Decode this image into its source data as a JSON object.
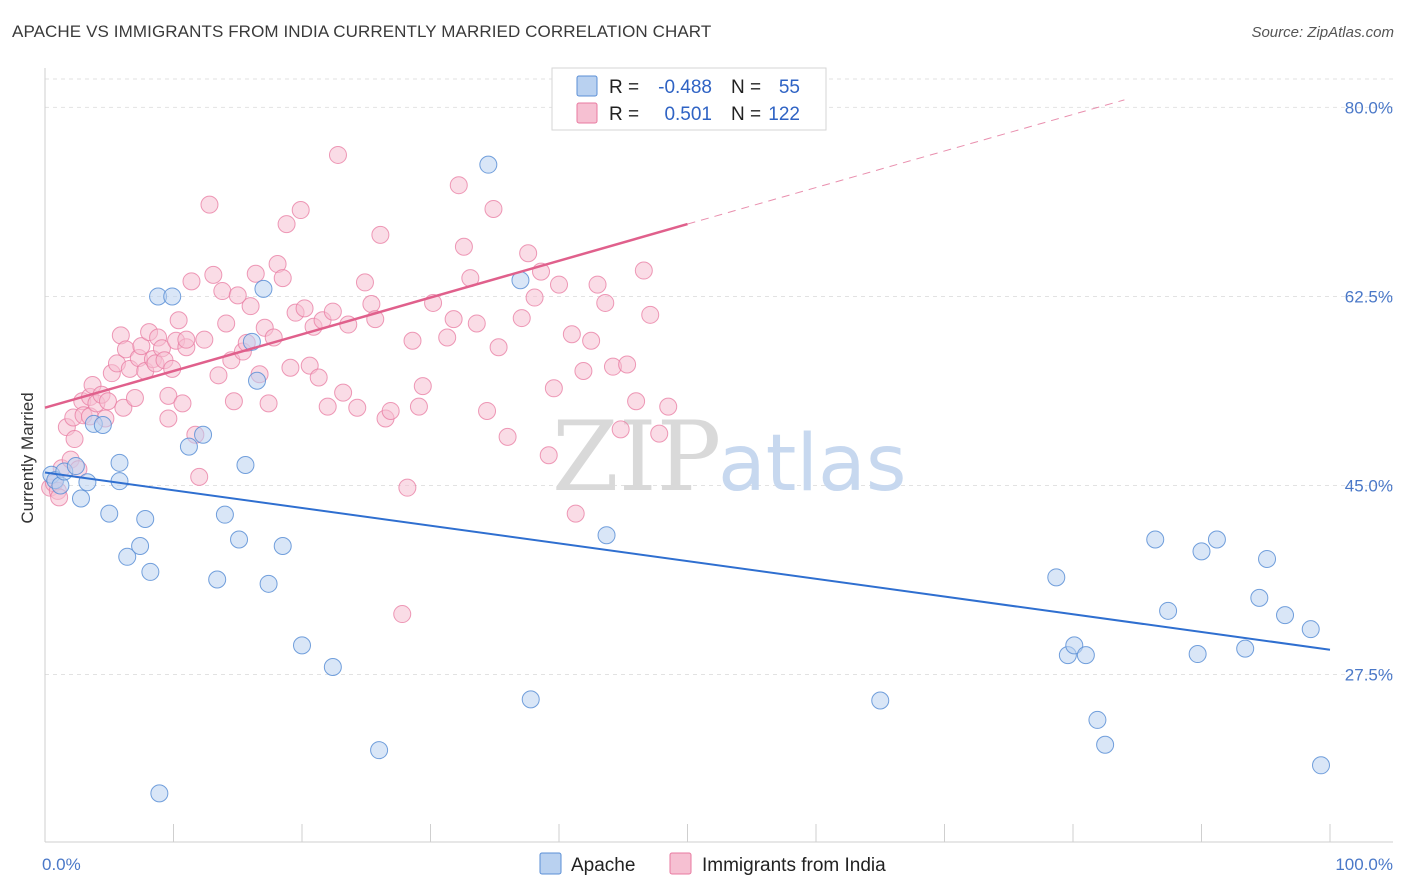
{
  "title": "APACHE VS IMMIGRANTS FROM INDIA CURRENTLY MARRIED CORRELATION CHART",
  "source": "Source: ZipAtlas.com",
  "watermark": {
    "zip": "ZIP",
    "atlas": "atlas"
  },
  "colors": {
    "apache": "#5b8fd6",
    "apache_fill": "#b9d1f0",
    "apache_line": "#2f6fd0",
    "india": "#e87aa0",
    "india_fill": "#f6c0d2",
    "india_line": "#e0608c",
    "grid": "#e2e2e2",
    "tick_label": "#4a78c8"
  },
  "legend": {
    "rows": [
      {
        "r_label": "R =",
        "r_value": "-0.488",
        "n_label": "N =",
        "n_value": "55"
      },
      {
        "r_label": "R =",
        "r_value": "0.501",
        "n_label": "N =",
        "n_value": "122"
      }
    ]
  },
  "chart_data": {
    "type": "scatter",
    "title": "APACHE VS IMMIGRANTS FROM INDIA CURRENTLY MARRIED CORRELATION CHART",
    "xlabel": "",
    "ylabel": "Currently Married",
    "xlim": [
      0,
      100
    ],
    "ylim": [
      12,
      83
    ],
    "x_tick_labels": [
      "0.0%",
      "100.0%"
    ],
    "y_ticks": [
      27.5,
      45.0,
      62.5,
      80.0
    ],
    "y_tick_labels": [
      "27.5%",
      "45.0%",
      "62.5%",
      "80.0%"
    ],
    "grid": true,
    "legend_position": "top-center",
    "series": [
      {
        "name": "Apache",
        "trend": {
          "x0": 0,
          "y0": 46.2,
          "x1": 100,
          "y1": 29.8
        },
        "points": [
          [
            0.5,
            46
          ],
          [
            0.8,
            45.5
          ],
          [
            1.2,
            45
          ],
          [
            1.5,
            46.3
          ],
          [
            2.4,
            46.8
          ],
          [
            2.8,
            43.8
          ],
          [
            3.3,
            45.3
          ],
          [
            3.8,
            50.7
          ],
          [
            4.5,
            50.6
          ],
          [
            5,
            42.4
          ],
          [
            5.8,
            45.4
          ],
          [
            5.8,
            47.1
          ],
          [
            6.4,
            38.4
          ],
          [
            7.4,
            39.4
          ],
          [
            7.8,
            41.9
          ],
          [
            8.2,
            37
          ],
          [
            8.9,
            16.5
          ],
          [
            8.8,
            62.5
          ],
          [
            9.9,
            62.5
          ],
          [
            11.2,
            48.6
          ],
          [
            12.3,
            49.7
          ],
          [
            13.4,
            36.3
          ],
          [
            14,
            42.3
          ],
          [
            15.1,
            40
          ],
          [
            15.6,
            46.9
          ],
          [
            16.1,
            58.3
          ],
          [
            16.5,
            54.7
          ],
          [
            17,
            63.2
          ],
          [
            17.4,
            35.9
          ],
          [
            18.5,
            39.4
          ],
          [
            20,
            30.2
          ],
          [
            22.4,
            28.2
          ],
          [
            26,
            20.5
          ],
          [
            34.5,
            74.7
          ],
          [
            37,
            64
          ],
          [
            37.8,
            25.2
          ],
          [
            43.7,
            40.4
          ],
          [
            65,
            25.1
          ],
          [
            78.7,
            36.5
          ],
          [
            79.6,
            29.3
          ],
          [
            80.1,
            30.2
          ],
          [
            81,
            29.3
          ],
          [
            81.9,
            23.3
          ],
          [
            82.5,
            21
          ],
          [
            86.4,
            40
          ],
          [
            87.4,
            33.4
          ],
          [
            89.7,
            29.4
          ],
          [
            90,
            38.9
          ],
          [
            91.2,
            40
          ],
          [
            93.4,
            29.9
          ],
          [
            94.5,
            34.6
          ],
          [
            95.1,
            38.2
          ],
          [
            96.5,
            33
          ],
          [
            98.5,
            31.7
          ],
          [
            99.3,
            19.1
          ]
        ]
      },
      {
        "name": "Immigrants from India",
        "trend": {
          "x0": 0,
          "y0": 52.2,
          "x1": 50,
          "y1": 69.2,
          "dash_x1": 84,
          "dash_y1": 80.7
        },
        "points": [
          [
            0.4,
            44.8
          ],
          [
            0.7,
            45.2
          ],
          [
            1,
            44.5
          ],
          [
            1.1,
            43.9
          ],
          [
            1.3,
            46.6
          ],
          [
            1.7,
            50.4
          ],
          [
            2,
            47.4
          ],
          [
            2.2,
            51.3
          ],
          [
            2.3,
            49.3
          ],
          [
            2.6,
            46.5
          ],
          [
            2.9,
            52.8
          ],
          [
            3,
            51.5
          ],
          [
            3.5,
            51.4
          ],
          [
            3.5,
            53.2
          ],
          [
            3.7,
            54.3
          ],
          [
            4,
            52.6
          ],
          [
            4.4,
            53.4
          ],
          [
            4.7,
            51.2
          ],
          [
            4.9,
            52.8
          ],
          [
            5.2,
            55.4
          ],
          [
            5.6,
            56.3
          ],
          [
            5.9,
            58.9
          ],
          [
            6.1,
            52.2
          ],
          [
            6.3,
            57.6
          ],
          [
            6.6,
            55.8
          ],
          [
            7,
            53.1
          ],
          [
            7.3,
            56.8
          ],
          [
            7.5,
            57.9
          ],
          [
            7.8,
            55.6
          ],
          [
            8.1,
            59.2
          ],
          [
            8.4,
            56.7
          ],
          [
            8.6,
            56.3
          ],
          [
            8.8,
            58.7
          ],
          [
            9.1,
            57.7
          ],
          [
            9.3,
            56.6
          ],
          [
            9.6,
            53.3
          ],
          [
            9.6,
            51.2
          ],
          [
            9.9,
            55.8
          ],
          [
            10.2,
            58.4
          ],
          [
            10.4,
            60.3
          ],
          [
            10.7,
            52.6
          ],
          [
            11,
            57.8
          ],
          [
            11,
            58.5
          ],
          [
            11.4,
            63.9
          ],
          [
            11.7,
            49.7
          ],
          [
            12,
            45.8
          ],
          [
            12.4,
            58.5
          ],
          [
            12.8,
            71
          ],
          [
            13.1,
            64.5
          ],
          [
            13.5,
            55.2
          ],
          [
            13.8,
            63
          ],
          [
            14.1,
            60
          ],
          [
            14.5,
            56.6
          ],
          [
            14.7,
            52.8
          ],
          [
            15,
            62.6
          ],
          [
            15.4,
            57.4
          ],
          [
            15.7,
            58.2
          ],
          [
            16,
            61.6
          ],
          [
            16.4,
            64.6
          ],
          [
            16.7,
            55.3
          ],
          [
            17.1,
            59.6
          ],
          [
            17.4,
            52.6
          ],
          [
            17.8,
            58.7
          ],
          [
            18.1,
            65.5
          ],
          [
            18.5,
            64.2
          ],
          [
            18.8,
            69.2
          ],
          [
            19.1,
            55.9
          ],
          [
            19.5,
            61
          ],
          [
            19.9,
            70.5
          ],
          [
            20.2,
            61.4
          ],
          [
            20.6,
            56.1
          ],
          [
            20.9,
            59.7
          ],
          [
            21.3,
            55
          ],
          [
            21.6,
            60.3
          ],
          [
            22,
            52.3
          ],
          [
            22.4,
            61.1
          ],
          [
            22.8,
            75.6
          ],
          [
            23.2,
            53.6
          ],
          [
            23.6,
            59.9
          ],
          [
            24.3,
            52.2
          ],
          [
            24.9,
            63.8
          ],
          [
            25.4,
            61.8
          ],
          [
            25.7,
            60.4
          ],
          [
            26.1,
            68.2
          ],
          [
            26.5,
            51.2
          ],
          [
            26.9,
            51.9
          ],
          [
            27.8,
            33.1
          ],
          [
            28.2,
            44.8
          ],
          [
            28.6,
            58.4
          ],
          [
            29.1,
            52.3
          ],
          [
            29.4,
            54.2
          ],
          [
            30.2,
            61.9
          ],
          [
            31.3,
            58.7
          ],
          [
            31.8,
            60.4
          ],
          [
            32.2,
            72.8
          ],
          [
            32.6,
            67.1
          ],
          [
            33.1,
            64.2
          ],
          [
            33.6,
            60
          ],
          [
            34.4,
            51.9
          ],
          [
            34.9,
            70.6
          ],
          [
            35.3,
            57.8
          ],
          [
            36,
            49.5
          ],
          [
            37.1,
            60.5
          ],
          [
            37.6,
            66.5
          ],
          [
            38.1,
            62.4
          ],
          [
            38.6,
            64.8
          ],
          [
            39.2,
            47.8
          ],
          [
            39.6,
            54
          ],
          [
            40,
            63.6
          ],
          [
            41,
            59
          ],
          [
            41.3,
            42.4
          ],
          [
            41.9,
            55.6
          ],
          [
            42.5,
            58.4
          ],
          [
            43,
            63.6
          ],
          [
            43.6,
            61.9
          ],
          [
            44.2,
            56
          ],
          [
            44.8,
            50.2
          ],
          [
            45.3,
            56.2
          ],
          [
            46,
            52.8
          ],
          [
            46.6,
            64.9
          ],
          [
            47.1,
            60.8
          ],
          [
            47.8,
            49.8
          ],
          [
            48.5,
            52.3
          ]
        ]
      }
    ]
  }
}
